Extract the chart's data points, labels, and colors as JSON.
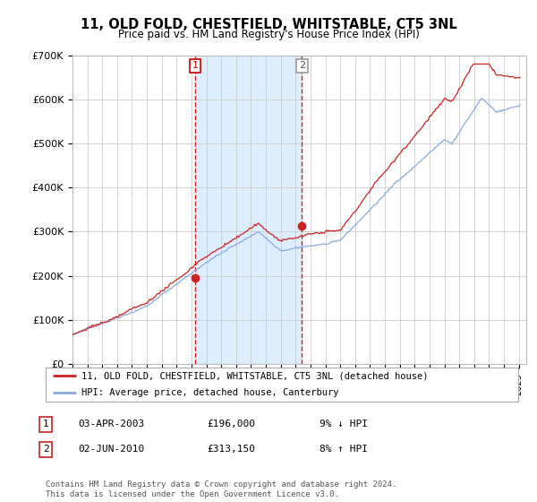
{
  "title": "11, OLD FOLD, CHESTFIELD, WHITSTABLE, CT5 3NL",
  "subtitle": "Price paid vs. HM Land Registry's House Price Index (HPI)",
  "legend_line1": "11, OLD FOLD, CHESTFIELD, WHITSTABLE, CT5 3NL (detached house)",
  "legend_line2": "HPI: Average price, detached house, Canterbury",
  "table_rows": [
    {
      "num": "1",
      "date": "03-APR-2003",
      "price": "£196,000",
      "hpi": "9% ↓ HPI"
    },
    {
      "num": "2",
      "date": "02-JUN-2010",
      "price": "£313,150",
      "hpi": "8% ↑ HPI"
    }
  ],
  "footnote": "Contains HM Land Registry data © Crown copyright and database right 2024.\nThis data is licensed under the Open Government Licence v3.0.",
  "sale1_year": 2003.25,
  "sale1_price": 196000,
  "sale2_year": 2010.42,
  "sale2_price": 313150,
  "ylim": [
    0,
    700000
  ],
  "yticks": [
    0,
    100000,
    200000,
    300000,
    400000,
    500000,
    600000,
    700000
  ],
  "ytick_labels": [
    "£0",
    "£100K",
    "£200K",
    "£300K",
    "£400K",
    "£500K",
    "£600K",
    "£700K"
  ],
  "hpi_color": "#88aadd",
  "sale_color": "#cc2222",
  "grid_color": "#cccccc",
  "vline_color": "#cc2222",
  "highlight_bg": "#ddeeff",
  "background_color": "#ffffff",
  "start_year": 1995,
  "end_year": 2025
}
